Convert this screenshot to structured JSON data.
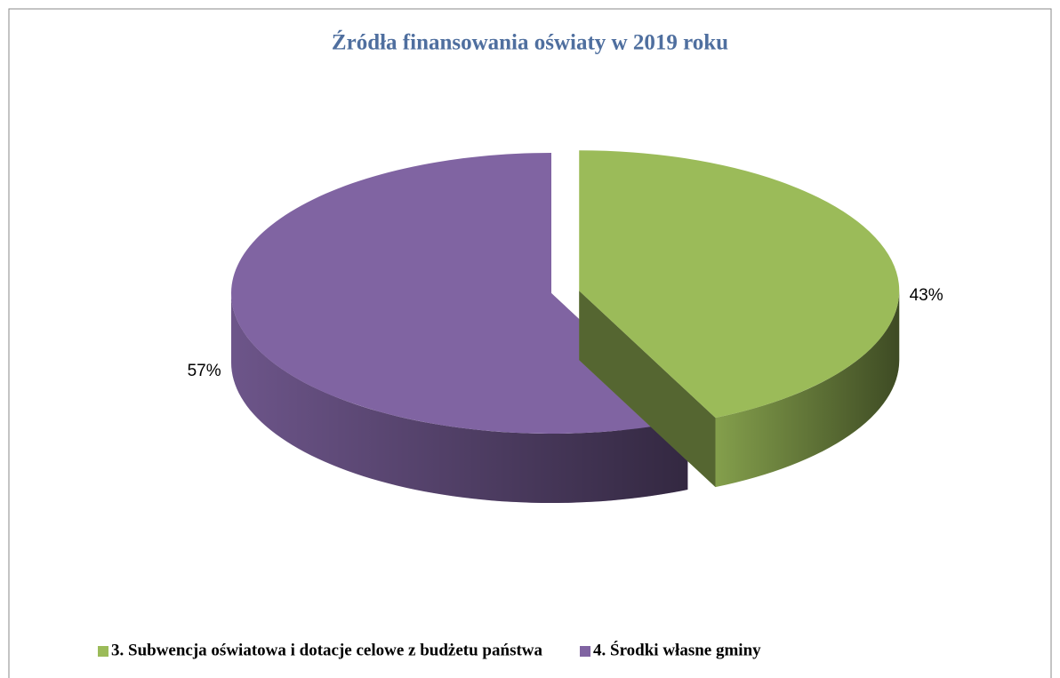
{
  "chart_data": {
    "type": "pie",
    "title": "Źródła finansowania oświaty w 2019 roku",
    "categories": [
      "3. Subwencja  oświatowa i dotacje celowe z budżetu państwa",
      "4. Środki własne gminy"
    ],
    "values": [
      43,
      57
    ],
    "value_labels": [
      "43%",
      "57%"
    ],
    "colors": [
      "#9bbb59",
      "#8064a2"
    ],
    "legend": "bottom"
  }
}
